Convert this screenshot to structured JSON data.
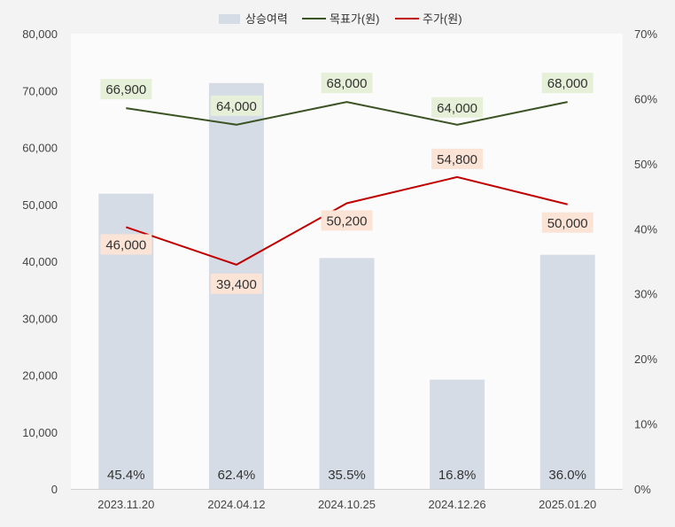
{
  "chart_data": {
    "type": "bar+line",
    "categories": [
      "2023.11.20",
      "2024.04.12",
      "2024.10.25",
      "2024.12.26",
      "2025.01.20"
    ],
    "bar_series": {
      "name": "상승여력",
      "values": [
        45.4,
        62.4,
        35.5,
        16.8,
        36.0
      ],
      "labels": [
        "45.4%",
        "62.4%",
        "35.5%",
        "16.8%",
        "36.0%"
      ],
      "axis": "right",
      "color": "#d6dce6"
    },
    "line_series": [
      {
        "name": "목표가(원)",
        "values": [
          66900,
          64000,
          68000,
          64000,
          68000
        ],
        "labels": [
          "66,900",
          "64,000",
          "68,000",
          "64,000",
          "68,000"
        ],
        "axis": "left",
        "color": "#3b5323",
        "label_bg": "#e6f0d8"
      },
      {
        "name": "주가(원)",
        "values": [
          46000,
          39400,
          50200,
          54800,
          50000
        ],
        "labels": [
          "46,000",
          "39,400",
          "50,200",
          "54,800",
          "50,000"
        ],
        "axis": "left",
        "color": "#c00000",
        "label_bg": "#fbe3d6"
      }
    ],
    "y_left": {
      "min": 0,
      "max": 80000,
      "ticks": [
        "0",
        "10,000",
        "20,000",
        "30,000",
        "40,000",
        "50,000",
        "60,000",
        "70,000",
        "80,000"
      ]
    },
    "y_right": {
      "min": 0,
      "max": 70,
      "ticks": [
        "0%",
        "10%",
        "20%",
        "30%",
        "40%",
        "50%",
        "60%",
        "70%"
      ]
    },
    "legend_position": "top-center",
    "grid": false
  }
}
